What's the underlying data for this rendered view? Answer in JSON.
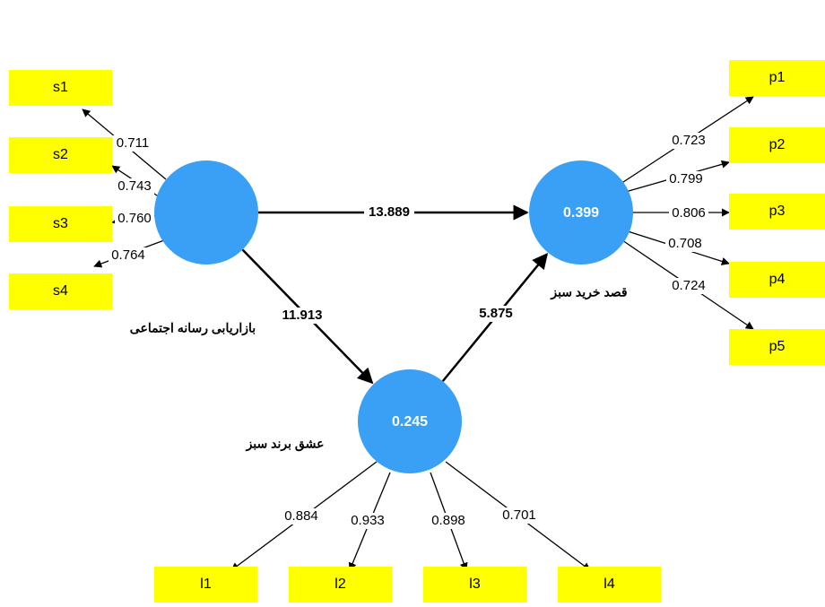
{
  "constructs": [
    {
      "label": "بازاریابی رسانه اجتماعی",
      "value": null
    },
    {
      "label": "قصد خرید سبز",
      "value": "0.399"
    },
    {
      "label": "عشق برند سبز",
      "value": "0.245"
    }
  ],
  "indicators": [
    {
      "construct": 0,
      "items": [
        "s1",
        "s2",
        "s3",
        "s4"
      ],
      "loadings": [
        "0.711",
        "0.743",
        "0.760",
        "0.764"
      ]
    },
    {
      "construct": 1,
      "items": [
        "p1",
        "p2",
        "p3",
        "p4",
        "p5"
      ],
      "loadings": [
        "0.723",
        "0.799",
        "0.806",
        "0.708",
        "0.724"
      ]
    },
    {
      "construct": 2,
      "items": [
        "l1",
        "l2",
        "l3",
        "l4"
      ],
      "loadings": [
        "0.884",
        "0.933",
        "0.898",
        "0.701"
      ]
    }
  ],
  "paths": [
    {
      "from": 0,
      "to": 1,
      "label": "13.889"
    },
    {
      "from": 0,
      "to": 2,
      "label": "11.913"
    },
    {
      "from": 2,
      "to": 1,
      "label": "5.875"
    }
  ]
}
